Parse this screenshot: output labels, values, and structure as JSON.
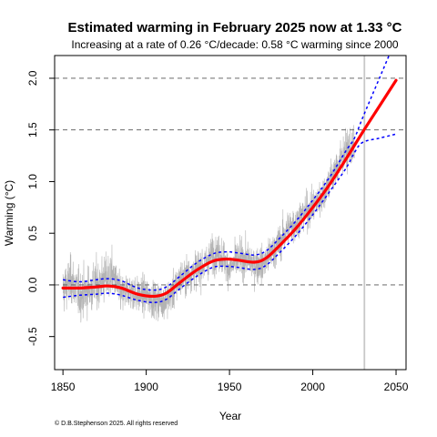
{
  "chart_data": {
    "type": "line",
    "title": "Estimated warming in February 2025 now at 1.33 °C",
    "subtitle": "Increasing at a rate of 0.26 °C/decade: 0.58 °C warming since 2000",
    "xlabel": "Year",
    "ylabel": "Warming (°C)",
    "xlim": [
      1845,
      2056
    ],
    "ylim": [
      -0.82,
      2.22
    ],
    "xticks": [
      1850,
      1900,
      1950,
      2000,
      2050
    ],
    "yticks": [
      -0.5,
      0.0,
      0.5,
      1.0,
      1.5,
      2.0
    ],
    "reference_lines_y": [
      0.0,
      1.5,
      2.0
    ],
    "marker_year": 2031,
    "grid": false,
    "legend": "none",
    "colors": {
      "observed": "#b3b3b3",
      "trend": "#ff0000",
      "band": "#0000ff",
      "reference": "#555555",
      "marker": "#c8c8c8"
    },
    "series": [
      {
        "role": "trend",
        "x": [
          1850,
          1860,
          1870,
          1877,
          1885,
          1895,
          1905,
          1912,
          1920,
          1930,
          1940,
          1948,
          1955,
          1965,
          1972,
          1980,
          1990,
          2000,
          2010,
          2020,
          2030,
          2040,
          2050
        ],
        "values": [
          -0.03,
          -0.03,
          -0.02,
          -0.01,
          -0.03,
          -0.09,
          -0.11,
          -0.08,
          0.02,
          0.14,
          0.23,
          0.25,
          0.24,
          0.22,
          0.26,
          0.38,
          0.55,
          0.75,
          0.97,
          1.22,
          1.48,
          1.73,
          1.98
        ]
      },
      {
        "role": "upper-band",
        "x": [
          1850,
          1860,
          1870,
          1877,
          1885,
          1895,
          1905,
          1912,
          1920,
          1930,
          1940,
          1948,
          1955,
          1965,
          1972,
          1980,
          1990,
          2000,
          2010,
          2020,
          2025,
          2030,
          2040,
          2050
        ],
        "values": [
          0.05,
          0.03,
          0.05,
          0.06,
          0.04,
          -0.03,
          -0.05,
          -0.02,
          0.08,
          0.21,
          0.3,
          0.32,
          0.31,
          0.29,
          0.33,
          0.45,
          0.62,
          0.82,
          1.04,
          1.3,
          1.42,
          1.62,
          2.0,
          2.38
        ]
      },
      {
        "role": "lower-band",
        "x": [
          1850,
          1860,
          1870,
          1877,
          1885,
          1895,
          1905,
          1912,
          1920,
          1930,
          1940,
          1948,
          1955,
          1965,
          1972,
          1980,
          1990,
          2000,
          2010,
          2020,
          2025,
          2030,
          2040,
          2050
        ],
        "values": [
          -0.12,
          -0.1,
          -0.09,
          -0.08,
          -0.1,
          -0.15,
          -0.17,
          -0.14,
          -0.04,
          0.08,
          0.17,
          0.18,
          0.17,
          0.15,
          0.19,
          0.31,
          0.48,
          0.68,
          0.9,
          1.13,
          1.28,
          1.38,
          1.42,
          1.46
        ]
      }
    ],
    "observed_anchor_points": {
      "x": [
        1850,
        1855,
        1860,
        1865,
        1870,
        1875,
        1880,
        1885,
        1890,
        1895,
        1900,
        1905,
        1910,
        1915,
        1920,
        1925,
        1930,
        1935,
        1940,
        1945,
        1950,
        1955,
        1960,
        1965,
        1970,
        1975,
        1980,
        1985,
        1990,
        1995,
        2000,
        2005,
        2010,
        2015,
        2020,
        2025
      ],
      "values": [
        -0.05,
        0.05,
        -0.1,
        -0.05,
        0.0,
        0.05,
        0.1,
        -0.1,
        -0.05,
        -0.1,
        -0.1,
        -0.15,
        -0.15,
        -0.1,
        0.05,
        0.1,
        0.15,
        0.2,
        0.3,
        0.3,
        0.15,
        0.25,
        0.25,
        0.2,
        0.2,
        0.3,
        0.4,
        0.55,
        0.6,
        0.7,
        0.75,
        0.85,
        1.0,
        1.15,
        1.3,
        1.33
      ],
      "monthly_spread": 0.15
    }
  },
  "footer": {
    "copyright": "© D.B.Stephenson 2025. All rights reserved"
  }
}
